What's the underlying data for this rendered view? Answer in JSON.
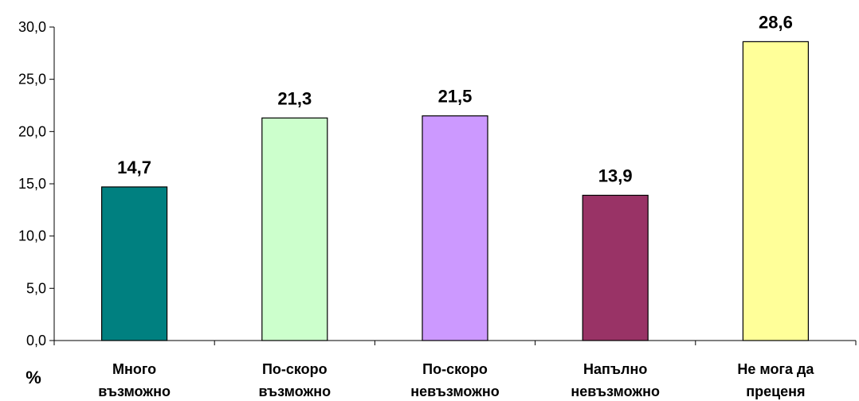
{
  "chart_data": {
    "type": "bar",
    "categories": [
      [
        "Много",
        "възможно"
      ],
      [
        "По-скоро",
        "възможно"
      ],
      [
        "По-скоро",
        "невъзможно"
      ],
      [
        "Напълно",
        "невъзможно"
      ],
      [
        "Не мога да",
        "преценя"
      ]
    ],
    "values": [
      14.7,
      21.3,
      21.5,
      13.9,
      28.6
    ],
    "value_labels": [
      "14,7",
      "21,3",
      "21,5",
      "13,9",
      "28,6"
    ],
    "colors": [
      "#008080",
      "#ccffcc",
      "#cc99ff",
      "#993366",
      "#ffff99"
    ],
    "ylim": [
      0,
      30
    ],
    "yticks": [
      0,
      5,
      10,
      15,
      20,
      25,
      30
    ],
    "ytick_labels": [
      "0,0",
      "5,0",
      "10,0",
      "15,0",
      "20,0",
      "25,0",
      "30,0"
    ],
    "ylabel": "%",
    "grid": false,
    "legend": false
  }
}
